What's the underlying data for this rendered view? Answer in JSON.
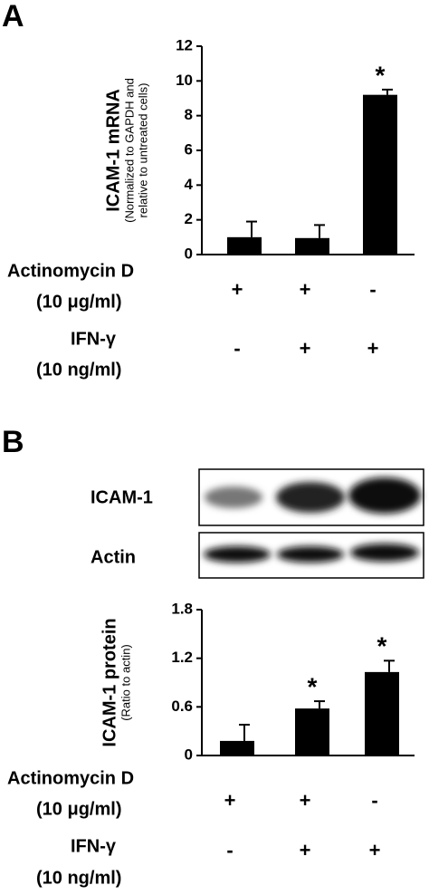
{
  "chart_data": [
    {
      "type": "bar",
      "panel": "A",
      "ylabel": "ICAM-1 mRNA",
      "ylabel_sub": [
        "(Normalized to GAPDH and",
        "relative to untreated cells)"
      ],
      "categories": [
        null,
        null,
        null
      ],
      "values": [
        1.0,
        0.95,
        9.2
      ],
      "errors": [
        0.9,
        0.75,
        0.3
      ],
      "significance": [
        null,
        null,
        "*"
      ],
      "color": "#000000",
      "ylim": [
        0,
        12
      ],
      "yticks": [
        0,
        2,
        4,
        6,
        8,
        10,
        12
      ],
      "conditions": [
        {
          "name": "Actinomycin D",
          "dose": "(10 μg/ml)",
          "signs": [
            "+",
            "+",
            "-"
          ]
        },
        {
          "name": "IFN-γ",
          "dose": "(10 ng/ml)",
          "signs": [
            "-",
            "+",
            "+"
          ]
        }
      ]
    },
    {
      "type": "bar",
      "panel": "B",
      "ylabel": "ICAM-1 protein",
      "ylabel_sub": [
        "(Ratio to actin)"
      ],
      "blot_labels": [
        "ICAM-1",
        "Actin"
      ],
      "categories": [
        null,
        null,
        null
      ],
      "values": [
        0.18,
        0.58,
        1.03
      ],
      "errors": [
        0.2,
        0.09,
        0.14
      ],
      "significance": [
        null,
        "*",
        "*"
      ],
      "color": "#000000",
      "ylim": [
        0,
        1.8
      ],
      "yticks": [
        0,
        0.6,
        1.2,
        1.8
      ],
      "conditions": [
        {
          "name": "Actinomycin D",
          "dose": "(10 μg/ml)",
          "signs": [
            "+",
            "+",
            "-"
          ]
        },
        {
          "name": "IFN-γ",
          "dose": "(10 ng/ml)",
          "signs": [
            "-",
            "+",
            "+"
          ]
        }
      ]
    }
  ]
}
